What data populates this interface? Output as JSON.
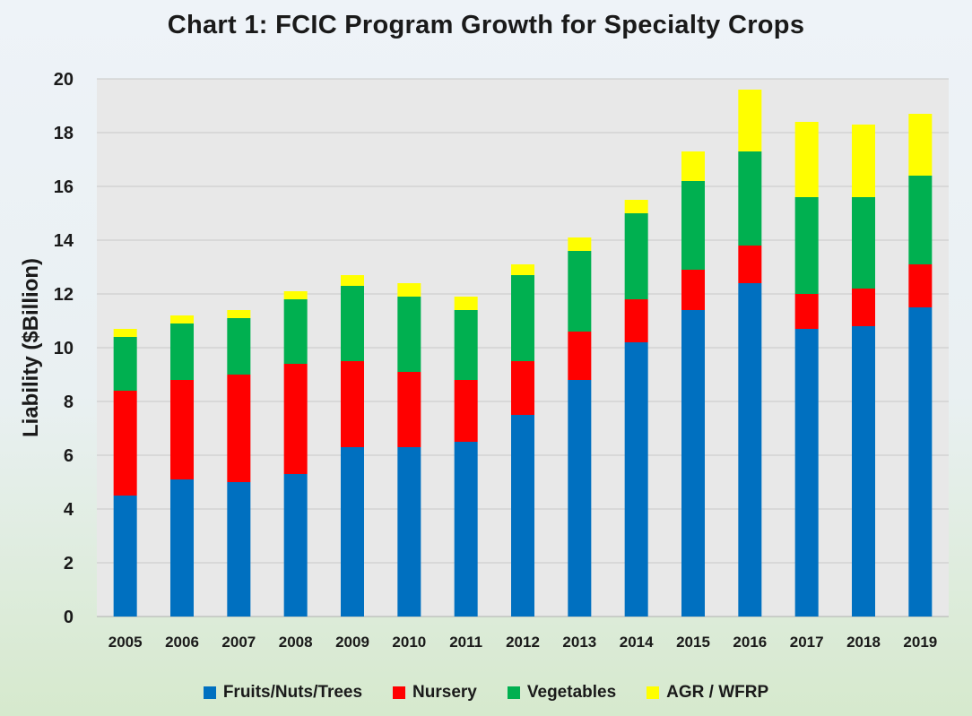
{
  "chart_data": {
    "type": "bar",
    "stacked": true,
    "title": "Chart 1: FCIC Program Growth for Specialty Crops",
    "xlabel": "",
    "ylabel": "Liability ($Billion)",
    "ylim": [
      0,
      20
    ],
    "yticks": [
      0,
      2,
      4,
      6,
      8,
      10,
      12,
      14,
      16,
      18,
      20
    ],
    "grid": true,
    "legend_position": "bottom",
    "categories": [
      "2005",
      "2006",
      "2007",
      "2008",
      "2009",
      "2010",
      "2011",
      "2012",
      "2013",
      "2014",
      "2015",
      "2016",
      "2017",
      "2018",
      "2019"
    ],
    "series": [
      {
        "name": "Fruits/Nuts/Trees",
        "color": "#0070c0",
        "values": [
          4.5,
          5.1,
          5.0,
          5.3,
          6.3,
          6.3,
          6.5,
          7.5,
          8.8,
          10.2,
          11.4,
          12.4,
          10.7,
          10.8,
          11.5
        ]
      },
      {
        "name": "Nursery",
        "color": "#ff0000",
        "values": [
          3.9,
          3.7,
          4.0,
          4.1,
          3.2,
          2.8,
          2.3,
          2.0,
          1.8,
          1.6,
          1.5,
          1.4,
          1.3,
          1.4,
          1.6
        ]
      },
      {
        "name": "Vegetables",
        "color": "#00b050",
        "values": [
          2.0,
          2.1,
          2.1,
          2.4,
          2.8,
          2.8,
          2.6,
          3.2,
          3.0,
          3.2,
          3.3,
          3.5,
          3.6,
          3.4,
          3.3
        ]
      },
      {
        "name": "AGR / WFRP",
        "color": "#ffff00",
        "values": [
          0.3,
          0.3,
          0.3,
          0.3,
          0.4,
          0.5,
          0.5,
          0.4,
          0.5,
          0.5,
          1.1,
          2.3,
          2.8,
          2.7,
          2.3
        ]
      }
    ]
  }
}
